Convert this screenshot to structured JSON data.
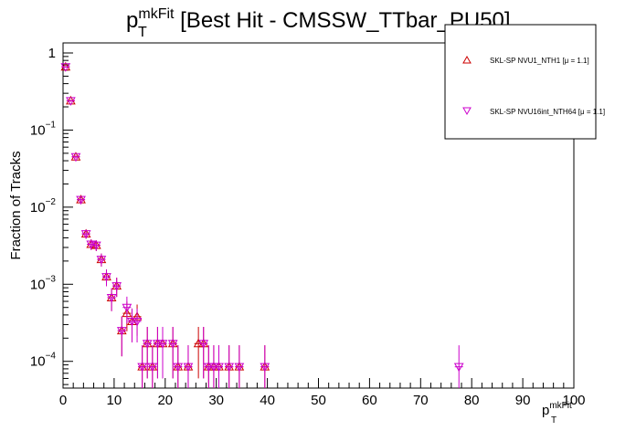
{
  "chart_data": {
    "type": "scatter",
    "title": {
      "base": "p",
      "sup": "mkFit",
      "sub": "T",
      "rest": " [Best Hit - CMSSW_TTbar_PU50]"
    },
    "xlabel": {
      "base": "p",
      "sup": "mkFit",
      "sub": "T"
    },
    "ylabel": "Fraction of Tracks",
    "xlim": [
      0,
      100
    ],
    "ylim": [
      4.5e-05,
      1.35
    ],
    "yscale": "log",
    "grid": false,
    "legend_position": "top-right",
    "x_ticks": [
      "0",
      "10",
      "20",
      "30",
      "40",
      "50",
      "60",
      "70",
      "80",
      "90",
      "100"
    ],
    "y_ticks": [
      {
        "value": 1,
        "mantissa": "1",
        "exp": ""
      },
      {
        "value": 0.1,
        "mantissa": "10",
        "exp": "−1"
      },
      {
        "value": 0.01,
        "mantissa": "10",
        "exp": "−2"
      },
      {
        "value": 0.001,
        "mantissa": "10",
        "exp": "−3"
      },
      {
        "value": 0.0001,
        "mantissa": "10",
        "exp": "−4"
      }
    ],
    "series": [
      {
        "name": "SKL-SP NVU1_NTH1 [μ = 1.1]",
        "legend_label": "SKL-SP NVU1_NTH1 [μ =  1.1]",
        "marker": "triangle-up",
        "color": "#cc0000",
        "points": [
          {
            "x": 0.5,
            "y": 0.66
          },
          {
            "x": 1.5,
            "y": 0.24
          },
          {
            "x": 2.5,
            "y": 0.045
          },
          {
            "x": 3.5,
            "y": 0.0125
          },
          {
            "x": 4.5,
            "y": 0.0045
          },
          {
            "x": 5.5,
            "y": 0.0033
          },
          {
            "x": 6.5,
            "y": 0.0032
          },
          {
            "x": 7.5,
            "y": 0.0021
          },
          {
            "x": 8.5,
            "y": 0.00125
          },
          {
            "x": 9.5,
            "y": 0.00067
          },
          {
            "x": 10.5,
            "y": 0.00095
          },
          {
            "x": 11.5,
            "y": 0.00025
          },
          {
            "x": 12.5,
            "y": 0.00042
          },
          {
            "x": 13.5,
            "y": 0.00033
          },
          {
            "x": 14.5,
            "y": 0.00038
          },
          {
            "x": 15.5,
            "y": 8.5e-05
          },
          {
            "x": 16.5,
            "y": 0.00017
          },
          {
            "x": 17.5,
            "y": 8.5e-05
          },
          {
            "x": 18.5,
            "y": 0.00017
          },
          {
            "x": 19.5,
            "y": 0.00017
          },
          {
            "x": 21.5,
            "y": 0.00017
          },
          {
            "x": 22.5,
            "y": 8.5e-05
          },
          {
            "x": 24.5,
            "y": 8.5e-05
          },
          {
            "x": 26.5,
            "y": 0.00017
          },
          {
            "x": 27.5,
            "y": 0.00017
          },
          {
            "x": 28.5,
            "y": 8.5e-05
          },
          {
            "x": 29.5,
            "y": 8.5e-05
          },
          {
            "x": 30.5,
            "y": 8.5e-05
          },
          {
            "x": 32.5,
            "y": 8.5e-05
          },
          {
            "x": 34.5,
            "y": 8.5e-05
          },
          {
            "x": 39.5,
            "y": 8.5e-05
          }
        ]
      },
      {
        "name": "SKL-SP NVU16int_NTH64 [μ = 1.1]",
        "legend_label": "SKL-SP NVU16int_NTH64 [μ =  1.1]",
        "marker": "triangle-down",
        "color": "#cc00cc",
        "points": [
          {
            "x": 0.5,
            "y": 0.66
          },
          {
            "x": 1.5,
            "y": 0.24
          },
          {
            "x": 2.5,
            "y": 0.045
          },
          {
            "x": 3.5,
            "y": 0.0125
          },
          {
            "x": 4.5,
            "y": 0.0045
          },
          {
            "x": 5.5,
            "y": 0.0033
          },
          {
            "x": 6.5,
            "y": 0.0032
          },
          {
            "x": 7.5,
            "y": 0.0021
          },
          {
            "x": 8.5,
            "y": 0.00125
          },
          {
            "x": 9.5,
            "y": 0.00067
          },
          {
            "x": 10.5,
            "y": 0.00095
          },
          {
            "x": 11.5,
            "y": 0.00025
          },
          {
            "x": 12.5,
            "y": 0.0005
          },
          {
            "x": 13.5,
            "y": 0.00033
          },
          {
            "x": 14.5,
            "y": 0.00033
          },
          {
            "x": 15.5,
            "y": 8.5e-05
          },
          {
            "x": 16.5,
            "y": 0.00017
          },
          {
            "x": 17.5,
            "y": 8.5e-05
          },
          {
            "x": 18.5,
            "y": 0.00017
          },
          {
            "x": 19.5,
            "y": 0.00017
          },
          {
            "x": 21.5,
            "y": 0.00017
          },
          {
            "x": 22.5,
            "y": 8.5e-05
          },
          {
            "x": 24.5,
            "y": 8.5e-05
          },
          {
            "x": 27.5,
            "y": 0.00017
          },
          {
            "x": 28.5,
            "y": 8.5e-05
          },
          {
            "x": 29.5,
            "y": 8.5e-05
          },
          {
            "x": 30.5,
            "y": 8.5e-05
          },
          {
            "x": 32.5,
            "y": 8.5e-05
          },
          {
            "x": 34.5,
            "y": 8.5e-05
          },
          {
            "x": 39.5,
            "y": 8.5e-05
          },
          {
            "x": 77.5,
            "y": 8.5e-05
          }
        ]
      }
    ]
  }
}
